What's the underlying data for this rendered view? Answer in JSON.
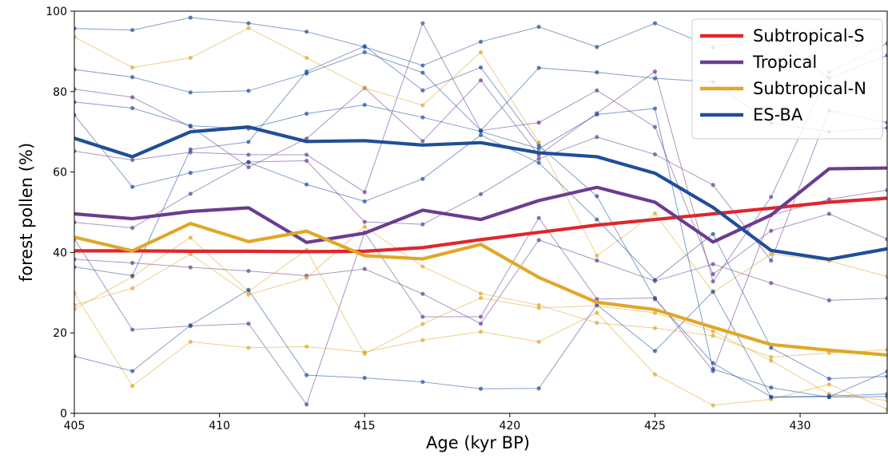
{
  "chart_data": {
    "type": "line",
    "title": "",
    "xlabel": "Age (kyr BP)",
    "ylabel": "forest pollen (%)",
    "xlim": [
      405,
      433
    ],
    "ylim": [
      0,
      100
    ],
    "xticks": [
      405,
      410,
      415,
      420,
      425,
      430
    ],
    "yticks": [
      0,
      20,
      40,
      60,
      80,
      100
    ],
    "x": [
      405,
      407,
      409,
      411,
      413,
      415,
      417,
      419,
      421,
      423,
      425,
      427,
      429,
      431,
      433
    ],
    "legend_position": "top-right",
    "grid": false,
    "series": [
      {
        "name": "Subtropical-S",
        "color": "#e0262c",
        "values": [
          40.4,
          40.4,
          40.3,
          40.3,
          40.2,
          40.3,
          41.2,
          43.2,
          45.0,
          46.8,
          48.2,
          49.6,
          51.0,
          52.5,
          53.5
        ]
      },
      {
        "name": "Tropical",
        "color": "#6a3d8f",
        "values": [
          49.6,
          48.4,
          50.2,
          51.1,
          42.5,
          44.8,
          50.5,
          48.2,
          52.9,
          56.2,
          52.5,
          42.6,
          49.3,
          60.8,
          61.0
        ]
      },
      {
        "name": "Subtropical-N",
        "color": "#e0a728",
        "values": [
          43.8,
          40.4,
          47.2,
          42.7,
          45.3,
          39.2,
          38.4,
          42.0,
          33.8,
          27.6,
          25.8,
          21.4,
          17.1,
          15.7,
          14.5
        ]
      },
      {
        "name": "ES-BA",
        "color": "#1f4e9a",
        "values": [
          68.4,
          63.8,
          70.0,
          71.2,
          67.6,
          67.8,
          66.7,
          67.3,
          64.8,
          63.8,
          59.7,
          51.2,
          40.5,
          38.3,
          40.9
        ]
      }
    ],
    "individual_records": [
      {
        "group": "Tropical",
        "values": [
          80.6,
          78.6,
          71.3,
          61.2,
          68.3,
          80.9,
          67.7,
          82.8,
          64.2,
          74.6,
          85.0,
          32.8,
          53.8,
          84.8,
          92.0
        ]
      },
      {
        "group": "Tropical",
        "values": [
          65.2,
          63.0,
          64.9,
          64.3,
          64.3,
          55.0,
          97.0,
          70.3,
          72.3,
          80.3,
          71.2,
          34.6,
          45.4,
          49.6,
          43.3
        ]
      },
      {
        "group": "Tropical",
        "values": [
          47.5,
          46.1,
          54.6,
          62.5,
          62.8,
          47.6,
          47.0,
          54.5,
          63.3,
          68.7,
          64.4,
          56.8,
          38.0,
          75.3,
          72.3
        ]
      },
      {
        "group": "Tropical",
        "values": [
          38.3,
          37.4,
          36.3,
          35.4,
          34.2,
          35.9,
          29.7,
          22.3,
          43.1,
          38.0,
          32.9,
          37.1,
          32.4,
          28.1,
          28.6
        ]
      },
      {
        "group": "Tropical",
        "values": [
          43.4,
          20.8,
          21.7,
          22.3,
          2.2,
          45.0,
          24.0,
          24.0,
          48.6,
          28.4,
          28.7,
          10.5,
          49.3,
          53.2,
          55.5
        ]
      },
      {
        "group": "Subtropical-N",
        "values": [
          93.6,
          86.0,
          88.4,
          95.8,
          88.4,
          80.9,
          76.6,
          89.8,
          67.4,
          39.2,
          49.7,
          30.1,
          39.6,
          37.9,
          34.0
        ]
      },
      {
        "group": "Subtropical-N",
        "values": [
          26.9,
          31.1,
          39.6,
          29.5,
          33.7,
          46.4,
          36.5,
          29.8,
          26.9,
          22.5,
          21.2,
          19.3,
          14.0,
          15.0,
          15.8
        ]
      },
      {
        "group": "Subtropical-N",
        "values": [
          29.9,
          6.8,
          17.8,
          16.3,
          16.6,
          15.2,
          18.2,
          20.3,
          17.8,
          25.0,
          9.7,
          2.0,
          3.5,
          7.2,
          1.0
        ]
      },
      {
        "group": "Subtropical-N",
        "values": [
          25.9,
          34.0,
          43.7,
          30.3,
          40.6,
          14.8,
          22.2,
          28.7,
          26.2,
          26.7,
          25.0,
          20.4,
          13.1,
          4.8,
          3.2
        ]
      },
      {
        "group": "ES-BA",
        "values": [
          95.7,
          95.3,
          98.4,
          97.0,
          94.9,
          91.1,
          86.5,
          92.4,
          96.1,
          91.1,
          97.0,
          91.0,
          93.6,
          83.4,
          89.0
        ]
      },
      {
        "group": "ES-BA",
        "values": [
          85.5,
          83.6,
          79.8,
          80.2,
          84.5,
          89.8,
          84.7,
          70.3,
          85.9,
          84.8,
          83.3,
          82.4,
          72.2,
          70.0,
          71.0
        ]
      },
      {
        "group": "ES-BA",
        "values": [
          77.4,
          75.9,
          71.5,
          70.8,
          74.5,
          76.7,
          73.6,
          70.1,
          65.8,
          74.3,
          75.8,
          11.0,
          6.4,
          4.0,
          4.2
        ]
      },
      {
        "group": "ES-BA",
        "values": [
          74.2,
          56.3,
          59.8,
          62.4,
          56.9,
          52.7,
          58.3,
          69.2,
          62.3,
          48.2,
          33.2,
          44.6,
          16.3,
          8.6,
          9.2
        ]
      },
      {
        "group": "ES-BA",
        "values": [
          14.2,
          10.5,
          21.9,
          30.7,
          9.5,
          8.8,
          7.8,
          6.1,
          6.2,
          27.0,
          15.5,
          30.3,
          4.0,
          4.1,
          10.4
        ]
      },
      {
        "group": "ES-BA",
        "values": [
          36.4,
          34.2,
          65.6,
          67.5,
          85.0,
          91.3,
          80.3,
          86.0,
          66.6,
          54.0,
          28.4,
          12.5,
          4.1,
          4.3,
          4.8
        ]
      }
    ]
  }
}
